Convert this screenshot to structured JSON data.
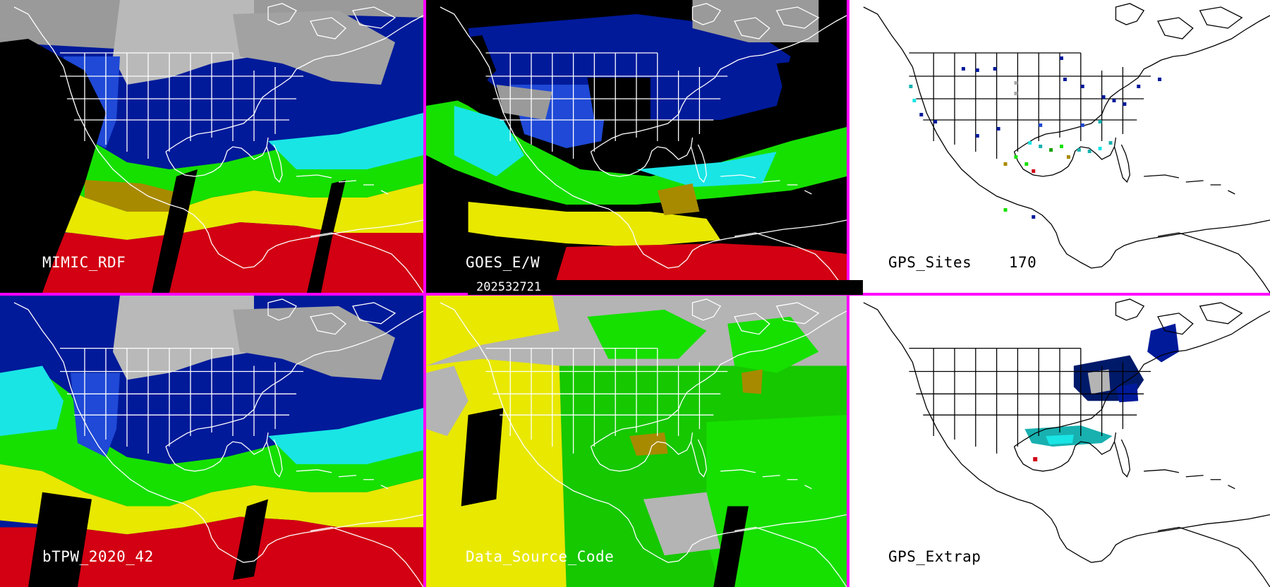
{
  "timestamp": "202532721",
  "colors": {
    "divider": "#ff00ff",
    "map_background_dark": "#000000",
    "map_background_light": "#ffffff",
    "cloud_gray": "#b4b4b4",
    "deep_blue": "#001a9a",
    "blue": "#1f49d6",
    "cyan": "#19e5e5",
    "green": "#16e000",
    "yellow": "#e8e800",
    "olive": "#a88a00",
    "red": "#d20012"
  },
  "panels": [
    {
      "id": "mimic-rdf",
      "label": "MIMIC_RDF",
      "label_color": "#ffffff",
      "style": "tpw"
    },
    {
      "id": "goes-ew",
      "label": "GOES_E/W",
      "label_color": "#ffffff",
      "style": "goes"
    },
    {
      "id": "gps-sites",
      "label": "GPS_Sites    170",
      "label_color": "#000000",
      "style": "gps-sites"
    },
    {
      "id": "btpw",
      "label": "bTPW_2020_42",
      "label_color": "#ffffff",
      "style": "tpw"
    },
    {
      "id": "data-source-code",
      "label": "Data_Source_Code",
      "label_color": "#ffffff",
      "style": "source"
    },
    {
      "id": "gps-extrap",
      "label": "GPS_Extrap",
      "label_color": "#000000",
      "style": "gps-extrap"
    }
  ]
}
